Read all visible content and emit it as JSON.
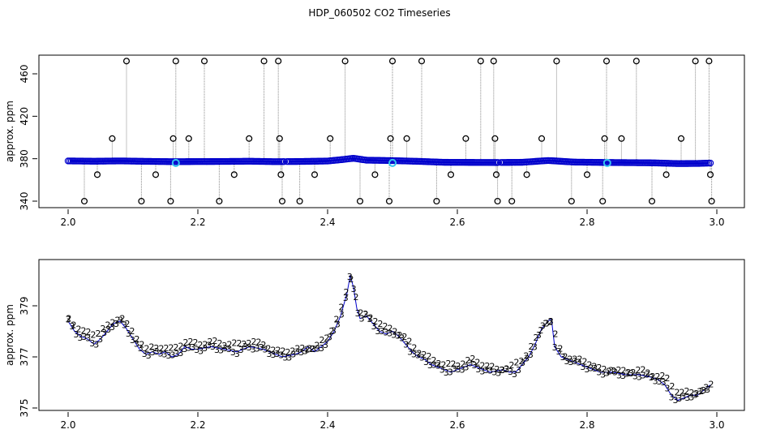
{
  "title": "HDP_060502  CO2 Timeseries",
  "colors": {
    "axis": "#000000",
    "blue": "#0000cc",
    "green": "#22aa22",
    "cyan": "#33c4ee",
    "grey": "#888888"
  },
  "chart_data": [
    {
      "type": "scatter",
      "title": "HDP_060502  CO2 Timeseries",
      "ylabel": "approx. ppm",
      "xlabel": "",
      "xlim": [
        2.0,
        3.0
      ],
      "ylim": [
        336,
        476
      ],
      "xticks": [
        "2.0",
        "2.2",
        "2.4",
        "2.6",
        "2.8",
        "3.0"
      ],
      "yticks": [
        "340",
        "380",
        "420",
        "460"
      ],
      "series": [
        {
          "style": "blue-dense",
          "points": [
            [
              2.0,
              377.9
            ],
            [
              2.04,
              377.6
            ],
            [
              2.08,
              377.9
            ],
            [
              2.12,
              377.5
            ],
            [
              2.16,
              377.2
            ],
            [
              2.2,
              377.3
            ],
            [
              2.24,
              377.4
            ],
            [
              2.28,
              377.6
            ],
            [
              2.32,
              377.2
            ],
            [
              2.36,
              377.4
            ],
            [
              2.4,
              377.8
            ],
            [
              2.42,
              379.0
            ],
            [
              2.44,
              380.4
            ],
            [
              2.46,
              378.6
            ],
            [
              2.5,
              378.2
            ],
            [
              2.54,
              377.5
            ],
            [
              2.58,
              376.6
            ],
            [
              2.62,
              376.5
            ],
            [
              2.66,
              376.4
            ],
            [
              2.7,
              376.6
            ],
            [
              2.74,
              378.3
            ],
            [
              2.78,
              376.8
            ],
            [
              2.82,
              376.5
            ],
            [
              2.86,
              376.3
            ],
            [
              2.9,
              376.1
            ],
            [
              2.94,
              375.4
            ],
            [
              2.97,
              375.5
            ],
            [
              2.99,
              375.9
            ]
          ]
        },
        {
          "style": "circles",
          "points": [
            [
              2.025,
              340
            ],
            [
              2.045,
              365
            ],
            [
              2.068,
              399
            ],
            [
              2.09,
              472
            ],
            [
              2.113,
              340
            ],
            [
              2.135,
              365
            ],
            [
              2.158,
              340
            ],
            [
              2.162,
              399
            ],
            [
              2.166,
              472
            ],
            [
              2.186,
              399
            ],
            [
              2.21,
              472
            ],
            [
              2.233,
              340
            ],
            [
              2.256,
              365
            ],
            [
              2.279,
              399
            ],
            [
              2.302,
              472
            ],
            [
              2.324,
              472
            ],
            [
              2.326,
              399
            ],
            [
              2.328,
              365
            ],
            [
              2.33,
              340
            ],
            [
              2.357,
              340
            ],
            [
              2.38,
              365
            ],
            [
              2.404,
              399
            ],
            [
              2.427,
              472
            ],
            [
              2.45,
              340
            ],
            [
              2.473,
              365
            ],
            [
              2.495,
              340
            ],
            [
              2.497,
              399
            ],
            [
              2.5,
              472
            ],
            [
              2.522,
              399
            ],
            [
              2.545,
              472
            ],
            [
              2.568,
              340
            ],
            [
              2.59,
              365
            ],
            [
              2.613,
              399
            ],
            [
              2.636,
              472
            ],
            [
              2.656,
              472
            ],
            [
              2.658,
              399
            ],
            [
              2.66,
              365
            ],
            [
              2.662,
              340
            ],
            [
              2.684,
              340
            ],
            [
              2.707,
              365
            ],
            [
              2.73,
              399
            ],
            [
              2.753,
              472
            ],
            [
              2.776,
              340
            ],
            [
              2.8,
              365
            ],
            [
              2.824,
              340
            ],
            [
              2.827,
              399
            ],
            [
              2.83,
              472
            ],
            [
              2.853,
              399
            ],
            [
              2.876,
              472
            ],
            [
              2.9,
              340
            ],
            [
              2.922,
              365
            ],
            [
              2.945,
              399
            ],
            [
              2.967,
              472
            ],
            [
              2.988,
              472
            ],
            [
              2.99,
              365
            ],
            [
              2.992,
              340
            ]
          ]
        },
        {
          "style": "cyan",
          "points": [
            [
              2.166,
              376.0
            ],
            [
              2.5,
              376.0
            ],
            [
              2.831,
              376.0
            ]
          ]
        }
      ]
    },
    {
      "type": "line",
      "title": "",
      "ylabel": "approx. ppm",
      "xlabel": "",
      "xlim": [
        2.0,
        3.0
      ],
      "ylim": [
        374.8,
        380.6
      ],
      "xticks": [
        "2.0",
        "2.2",
        "2.4",
        "2.6",
        "2.8",
        "3.0"
      ],
      "yticks": [
        "375",
        "377",
        "379"
      ],
      "series": [
        {
          "symbol": "3",
          "points": [
            [
              2.0,
              378.4
            ],
            [
              2.01,
              378.0
            ],
            [
              2.02,
              377.8
            ],
            [
              2.03,
              377.7
            ],
            [
              2.04,
              377.5
            ],
            [
              2.05,
              377.7
            ],
            [
              2.06,
              378.0
            ],
            [
              2.07,
              378.3
            ],
            [
              2.08,
              378.4
            ],
            [
              2.09,
              378.1
            ],
            [
              2.1,
              377.7
            ],
            [
              2.11,
              377.3
            ],
            [
              2.12,
              377.1
            ],
            [
              2.13,
              377.2
            ],
            [
              2.14,
              377.1
            ],
            [
              2.15,
              377.2
            ],
            [
              2.16,
              377.0
            ],
            [
              2.17,
              377.1
            ],
            [
              2.18,
              377.4
            ],
            [
              2.19,
              377.3
            ],
            [
              2.2,
              377.3
            ],
            [
              2.22,
              377.4
            ],
            [
              2.24,
              377.3
            ],
            [
              2.26,
              377.2
            ],
            [
              2.28,
              377.4
            ],
            [
              2.3,
              377.3
            ],
            [
              2.32,
              377.1
            ],
            [
              2.33,
              377.0
            ],
            [
              2.35,
              377.1
            ],
            [
              2.36,
              377.2
            ],
            [
              2.37,
              377.4
            ],
            [
              2.38,
              377.2
            ],
            [
              2.39,
              377.4
            ],
            [
              2.4,
              377.6
            ],
            [
              2.41,
              378.0
            ],
            [
              2.42,
              378.6
            ],
            [
              2.43,
              379.5
            ],
            [
              2.435,
              380.2
            ],
            [
              2.44,
              379.7
            ],
            [
              2.445,
              378.9
            ],
            [
              2.45,
              378.5
            ],
            [
              2.46,
              378.6
            ],
            [
              2.47,
              378.3
            ],
            [
              2.48,
              378.0
            ],
            [
              2.49,
              377.9
            ],
            [
              2.5,
              378.0
            ],
            [
              2.51,
              377.8
            ],
            [
              2.52,
              377.5
            ],
            [
              2.53,
              377.2
            ],
            [
              2.54,
              377.0
            ],
            [
              2.55,
              376.9
            ],
            [
              2.56,
              376.7
            ],
            [
              2.57,
              376.6
            ],
            [
              2.58,
              376.5
            ],
            [
              2.59,
              376.4
            ],
            [
              2.6,
              376.5
            ],
            [
              2.61,
              376.6
            ],
            [
              2.62,
              376.7
            ],
            [
              2.63,
              376.6
            ],
            [
              2.64,
              376.5
            ],
            [
              2.65,
              376.4
            ],
            [
              2.67,
              376.5
            ],
            [
              2.68,
              376.4
            ],
            [
              2.69,
              376.4
            ],
            [
              2.7,
              376.7
            ],
            [
              2.71,
              377.0
            ],
            [
              2.72,
              377.5
            ],
            [
              2.73,
              378.1
            ],
            [
              2.74,
              378.4
            ],
            [
              2.745,
              378.5
            ],
            [
              2.75,
              377.4
            ],
            [
              2.76,
              377.0
            ],
            [
              2.77,
              376.9
            ],
            [
              2.78,
              376.8
            ],
            [
              2.79,
              376.7
            ],
            [
              2.8,
              376.6
            ],
            [
              2.81,
              376.5
            ],
            [
              2.82,
              376.4
            ],
            [
              2.84,
              376.4
            ],
            [
              2.86,
              376.3
            ],
            [
              2.88,
              376.3
            ],
            [
              2.9,
              376.2
            ],
            [
              2.91,
              376.1
            ],
            [
              2.92,
              375.9
            ],
            [
              2.93,
              375.5
            ],
            [
              2.94,
              375.3
            ],
            [
              2.95,
              375.4
            ],
            [
              2.96,
              375.5
            ],
            [
              2.97,
              375.5
            ],
            [
              2.98,
              375.7
            ],
            [
              2.99,
              375.9
            ]
          ]
        },
        {
          "symbol": "2",
          "points": [
            [
              2.0,
              378.5
            ],
            [
              2.02,
              378.0
            ],
            [
              2.04,
              377.9
            ],
            [
              2.06,
              378.2
            ],
            [
              2.08,
              378.6
            ],
            [
              2.1,
              377.9
            ],
            [
              2.12,
              377.3
            ],
            [
              2.14,
              377.4
            ],
            [
              2.16,
              377.3
            ],
            [
              2.18,
              377.6
            ],
            [
              2.2,
              377.5
            ],
            [
              2.22,
              377.6
            ],
            [
              2.24,
              377.5
            ],
            [
              2.26,
              377.5
            ],
            [
              2.28,
              377.6
            ],
            [
              2.3,
              377.5
            ],
            [
              2.32,
              377.2
            ],
            [
              2.36,
              377.3
            ],
            [
              2.38,
              377.4
            ],
            [
              2.4,
              377.8
            ],
            [
              2.42,
              378.9
            ],
            [
              2.435,
              380.1
            ],
            [
              2.45,
              378.7
            ],
            [
              2.47,
              378.5
            ],
            [
              2.49,
              378.1
            ],
            [
              2.5,
              378.1
            ],
            [
              2.52,
              377.7
            ],
            [
              2.54,
              377.2
            ],
            [
              2.56,
              376.9
            ],
            [
              2.58,
              376.7
            ],
            [
              2.6,
              376.7
            ],
            [
              2.62,
              376.9
            ],
            [
              2.64,
              376.7
            ],
            [
              2.66,
              376.5
            ],
            [
              2.68,
              376.6
            ],
            [
              2.7,
              376.9
            ],
            [
              2.72,
              377.7
            ],
            [
              2.74,
              378.6
            ],
            [
              2.76,
              377.1
            ],
            [
              2.78,
              376.9
            ],
            [
              2.8,
              376.8
            ],
            [
              2.82,
              376.5
            ],
            [
              2.84,
              376.5
            ],
            [
              2.86,
              376.4
            ],
            [
              2.88,
              376.5
            ],
            [
              2.9,
              376.3
            ],
            [
              2.92,
              376.2
            ],
            [
              2.94,
              375.6
            ],
            [
              2.96,
              375.6
            ],
            [
              2.98,
              375.7
            ],
            [
              2.99,
              375.9
            ]
          ]
        }
      ]
    }
  ]
}
